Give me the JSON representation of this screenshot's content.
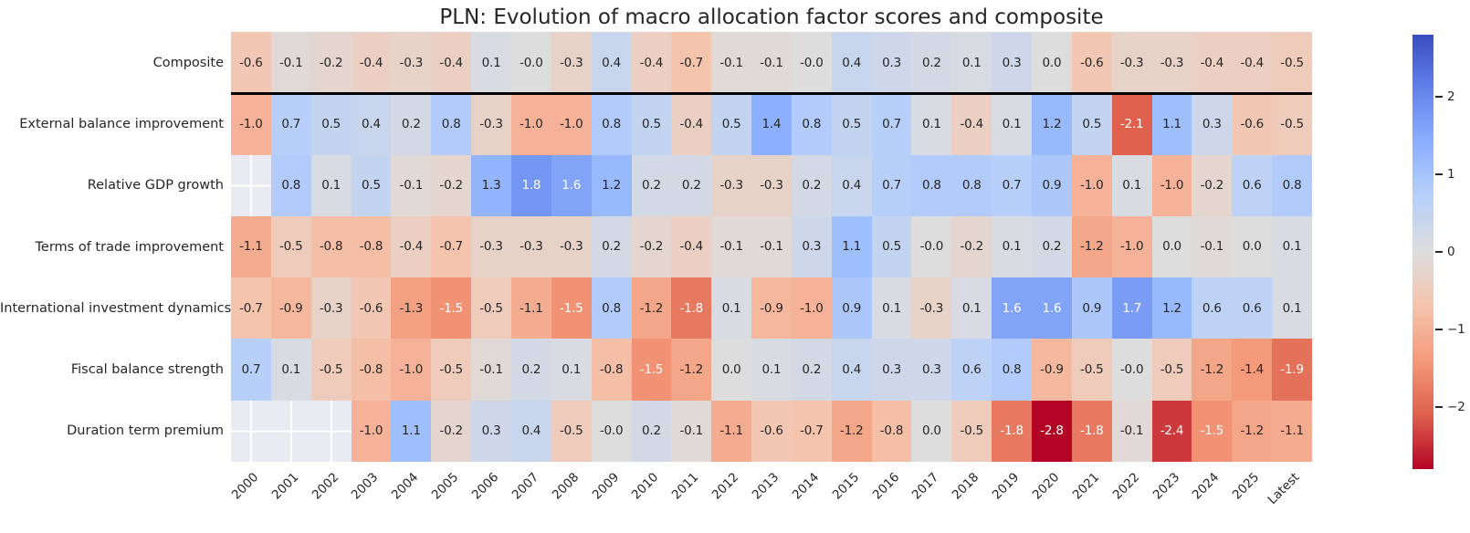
{
  "chart_data": {
    "type": "heatmap",
    "title": "PLN: Evolution of macro allocation factor scores and composite",
    "columns": [
      "2000",
      "2001",
      "2002",
      "2003",
      "2004",
      "2005",
      "2006",
      "2007",
      "2008",
      "2009",
      "2010",
      "2011",
      "2012",
      "2013",
      "2014",
      "2015",
      "2016",
      "2017",
      "2018",
      "2019",
      "2020",
      "2021",
      "2022",
      "2023",
      "2024",
      "2025",
      "Latest"
    ],
    "rows": [
      {
        "label": "Composite",
        "values": [
          "-0.6",
          "-0.1",
          "-0.2",
          "-0.4",
          "-0.3",
          "-0.4",
          "0.1",
          "-0.0",
          "-0.3",
          "0.4",
          "-0.4",
          "-0.7",
          "-0.1",
          "-0.1",
          "-0.0",
          "0.4",
          "0.3",
          "0.2",
          "0.1",
          "0.3",
          "0.0",
          "-0.6",
          "-0.3",
          "-0.3",
          "-0.4",
          "-0.4",
          "-0.5"
        ]
      },
      {
        "label": "External balance improvement",
        "values": [
          "-1.0",
          "0.7",
          "0.5",
          "0.4",
          "0.2",
          "0.8",
          "-0.3",
          "-1.0",
          "-1.0",
          "0.8",
          "0.5",
          "-0.4",
          "0.5",
          "1.4",
          "0.8",
          "0.5",
          "0.7",
          "0.1",
          "-0.4",
          "0.1",
          "1.2",
          "0.5",
          "-2.1",
          "1.1",
          "0.3",
          "-0.6",
          "-0.5"
        ]
      },
      {
        "label": "Relative GDP growth",
        "values": [
          null,
          "0.8",
          "0.1",
          "0.5",
          "-0.1",
          "-0.2",
          "1.3",
          "1.8",
          "1.6",
          "1.2",
          "0.2",
          "0.2",
          "-0.3",
          "-0.3",
          "0.2",
          "0.4",
          "0.7",
          "0.8",
          "0.8",
          "0.7",
          "0.9",
          "-1.0",
          "0.1",
          "-1.0",
          "-0.2",
          "0.6",
          "0.8"
        ]
      },
      {
        "label": "Terms of trade improvement",
        "values": [
          "-1.1",
          "-0.5",
          "-0.8",
          "-0.8",
          "-0.4",
          "-0.7",
          "-0.3",
          "-0.3",
          "-0.3",
          "0.2",
          "-0.2",
          "-0.4",
          "-0.1",
          "-0.1",
          "0.3",
          "1.1",
          "0.5",
          "-0.0",
          "-0.2",
          "0.1",
          "0.2",
          "-1.2",
          "-1.0",
          "0.0",
          "-0.1",
          "0.0",
          "0.1"
        ]
      },
      {
        "label": "International investment dynamics",
        "values": [
          "-0.7",
          "-0.9",
          "-0.3",
          "-0.6",
          "-1.3",
          "-1.5",
          "-0.5",
          "-1.1",
          "-1.5",
          "0.8",
          "-1.2",
          "-1.8",
          "0.1",
          "-0.9",
          "-1.0",
          "0.9",
          "0.1",
          "-0.3",
          "0.1",
          "1.6",
          "1.6",
          "0.9",
          "1.7",
          "1.2",
          "0.6",
          "0.6",
          "0.1"
        ]
      },
      {
        "label": "Fiscal balance strength",
        "values": [
          "0.7",
          "0.1",
          "-0.5",
          "-0.8",
          "-1.0",
          "-0.5",
          "-0.1",
          "0.2",
          "0.1",
          "-0.8",
          "-1.5",
          "-1.2",
          "0.0",
          "0.1",
          "0.2",
          "0.4",
          "0.3",
          "0.3",
          "0.6",
          "0.8",
          "-0.9",
          "-0.5",
          "-0.0",
          "-0.5",
          "-1.2",
          "-1.4",
          "-1.9"
        ]
      },
      {
        "label": "Duration term premium",
        "values": [
          null,
          null,
          null,
          "-1.0",
          "1.1",
          "-0.2",
          "0.3",
          "0.4",
          "-0.5",
          "-0.0",
          "0.2",
          "-0.1",
          "-1.1",
          "-0.6",
          "-0.7",
          "-1.2",
          "-0.8",
          "0.0",
          "-0.5",
          "-1.8",
          "-2.8",
          "-1.8",
          "-0.1",
          "-2.4",
          "-1.5",
          "-1.2",
          "-1.1"
        ]
      }
    ],
    "separator_below_row": "Composite",
    "colormap": "coolwarm_r",
    "vmin": -2.8,
    "vmax": 2.8,
    "colormap_stops_low_to_high": [
      "#b40426",
      "#de604d",
      "#f49a7b",
      "#f5c4ad",
      "#dddddd",
      "#b8d0f9",
      "#8db0fe",
      "#6282ea",
      "#3b4cc0"
    ],
    "colorbar_ticks": [
      {
        "value": 2,
        "label": "2"
      },
      {
        "value": 1,
        "label": "1"
      },
      {
        "value": 0,
        "label": "0"
      },
      {
        "value": -1,
        "label": "−1"
      },
      {
        "value": -2,
        "label": "−2"
      }
    ],
    "missing_color": "#eaeaf2",
    "annotation_color_dark": "#262626",
    "annotation_color_light": "#ffffff",
    "legend_position": "right",
    "grid": false
  }
}
